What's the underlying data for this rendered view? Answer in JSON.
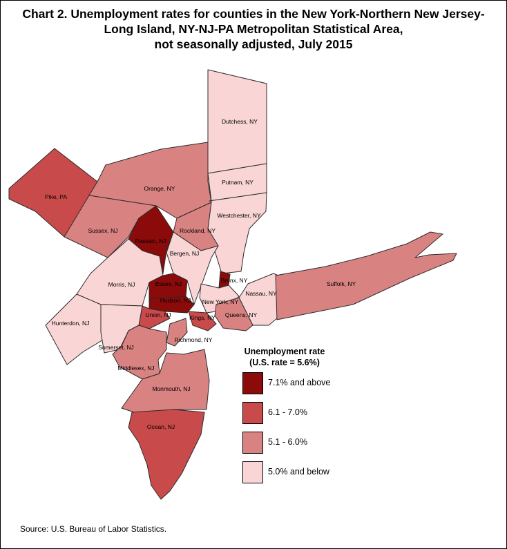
{
  "title": {
    "line1": "Chart 2. Unemployment rates for counties in the New York-Northern New Jersey-",
    "line2": "Long Island, NY-NJ-PA Metropolitan Statistical Area,",
    "line3": "not seasonally adjusted, July 2015"
  },
  "legend": {
    "title": "Unemployment rate",
    "subtitle": "(U.S. rate = 5.6%)",
    "classes": [
      {
        "label": "7.1% and above",
        "color": "#8b0a0a"
      },
      {
        "label": "6.1 - 7.0%",
        "color": "#c94a4a"
      },
      {
        "label": "5.1 - 6.0%",
        "color": "#d98282"
      },
      {
        "label": "5.0% and below",
        "color": "#f9d5d5"
      }
    ]
  },
  "counties": [
    {
      "name": "Pike, PA",
      "class": 1
    },
    {
      "name": "Orange, NY",
      "class": 2
    },
    {
      "name": "Dutchess, NY",
      "class": 3
    },
    {
      "name": "Putnam, NY",
      "class": 3
    },
    {
      "name": "Westchester, NY",
      "class": 3
    },
    {
      "name": "Sussex, NJ",
      "class": 2
    },
    {
      "name": "Rockland, NY",
      "class": 2
    },
    {
      "name": "Passaic, NJ",
      "class": 0
    },
    {
      "name": "Bergen, NJ",
      "class": 3
    },
    {
      "name": "Morris, NJ",
      "class": 3
    },
    {
      "name": "Essex, NJ",
      "class": 0
    },
    {
      "name": "Hudson, NJ",
      "class": 0
    },
    {
      "name": "Bronx, NY",
      "class": 0
    },
    {
      "name": "New York, NY",
      "class": 3
    },
    {
      "name": "Nassau, NY",
      "class": 3
    },
    {
      "name": "Suffolk, NY",
      "class": 2
    },
    {
      "name": "Hunterdon, NJ",
      "class": 3
    },
    {
      "name": "Union, NJ",
      "class": 1
    },
    {
      "name": "Kings, NY",
      "class": 1
    },
    {
      "name": "Queens, NY",
      "class": 2
    },
    {
      "name": "Somerset, NJ",
      "class": 3
    },
    {
      "name": "Richmond, NY",
      "class": 2
    },
    {
      "name": "Middlesex, NJ",
      "class": 2
    },
    {
      "name": "Monmouth, NJ",
      "class": 2
    },
    {
      "name": "Ocean, NJ",
      "class": 1
    }
  ],
  "source": "Source: U.S. Bureau of Labor Statistics."
}
